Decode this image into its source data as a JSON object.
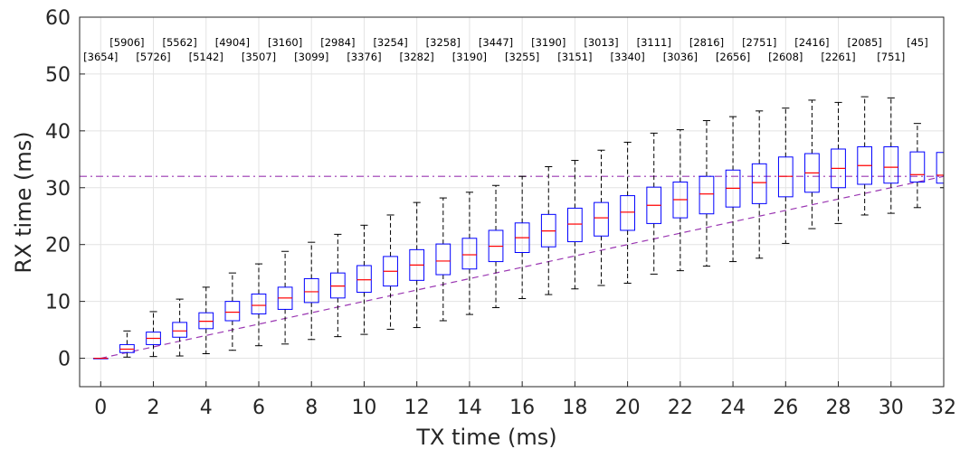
{
  "chart_data": {
    "type": "box",
    "title": "",
    "xlabel": "TX time (ms)",
    "ylabel": "RX time (ms)",
    "xlim": [
      -0.8,
      32
    ],
    "ylim": [
      -5,
      60
    ],
    "xticks": [
      0,
      2,
      4,
      6,
      8,
      10,
      12,
      14,
      16,
      18,
      20,
      22,
      24,
      26,
      28,
      30,
      32
    ],
    "yticks": [
      0,
      10,
      20,
      30,
      40,
      50,
      60
    ],
    "grid": true,
    "colors": {
      "box": "#0000ff",
      "median": "#ff0000",
      "whisker": "#000000",
      "reference": "#9a36b2"
    },
    "reference_lines": [
      {
        "kind": "horizontal",
        "y": 32,
        "style": "dash-dot"
      },
      {
        "kind": "diagonal",
        "from": [
          0,
          0
        ],
        "to": [
          32,
          32
        ],
        "style": "dashed"
      }
    ],
    "boxes": [
      {
        "x": 0,
        "whisker_low": 0,
        "q1": 0,
        "median": 0,
        "q3": 0,
        "whisker_high": 0
      },
      {
        "x": 1,
        "whisker_low": 0.2,
        "q1": 1.0,
        "median": 1.6,
        "q3": 2.4,
        "whisker_high": 4.8
      },
      {
        "x": 2,
        "whisker_low": 0.3,
        "q1": 2.4,
        "median": 3.5,
        "q3": 4.6,
        "whisker_high": 8.2
      },
      {
        "x": 3,
        "whisker_low": 0.4,
        "q1": 3.7,
        "median": 4.8,
        "q3": 6.3,
        "whisker_high": 10.4
      },
      {
        "x": 4,
        "whisker_low": 0.8,
        "q1": 5.2,
        "median": 6.5,
        "q3": 8.0,
        "whisker_high": 12.5
      },
      {
        "x": 5,
        "whisker_low": 1.4,
        "q1": 6.6,
        "median": 8.1,
        "q3": 10.0,
        "whisker_high": 15.0
      },
      {
        "x": 6,
        "whisker_low": 2.2,
        "q1": 7.8,
        "median": 9.3,
        "q3": 11.3,
        "whisker_high": 16.6
      },
      {
        "x": 7,
        "whisker_low": 2.5,
        "q1": 8.6,
        "median": 10.6,
        "q3": 12.5,
        "whisker_high": 18.8
      },
      {
        "x": 8,
        "whisker_low": 3.3,
        "q1": 9.8,
        "median": 11.7,
        "q3": 14.0,
        "whisker_high": 20.4
      },
      {
        "x": 9,
        "whisker_low": 3.8,
        "q1": 10.6,
        "median": 12.7,
        "q3": 15.0,
        "whisker_high": 21.8
      },
      {
        "x": 10,
        "whisker_low": 4.2,
        "q1": 11.6,
        "median": 13.8,
        "q3": 16.3,
        "whisker_high": 23.4
      },
      {
        "x": 11,
        "whisker_low": 5.1,
        "q1": 12.7,
        "median": 15.3,
        "q3": 17.9,
        "whisker_high": 25.2
      },
      {
        "x": 12,
        "whisker_low": 5.4,
        "q1": 13.7,
        "median": 16.4,
        "q3": 19.1,
        "whisker_high": 27.4
      },
      {
        "x": 13,
        "whisker_low": 6.6,
        "q1": 14.7,
        "median": 17.1,
        "q3": 20.1,
        "whisker_high": 28.2
      },
      {
        "x": 14,
        "whisker_low": 7.7,
        "q1": 15.7,
        "median": 18.2,
        "q3": 21.1,
        "whisker_high": 29.2
      },
      {
        "x": 15,
        "whisker_low": 8.9,
        "q1": 17.0,
        "median": 19.7,
        "q3": 22.5,
        "whisker_high": 30.4
      },
      {
        "x": 16,
        "whisker_low": 10.5,
        "q1": 18.6,
        "median": 21.2,
        "q3": 23.8,
        "whisker_high": 32.0
      },
      {
        "x": 17,
        "whisker_low": 11.2,
        "q1": 19.6,
        "median": 22.4,
        "q3": 25.3,
        "whisker_high": 33.7
      },
      {
        "x": 18,
        "whisker_low": 12.2,
        "q1": 20.5,
        "median": 23.6,
        "q3": 26.4,
        "whisker_high": 34.8
      },
      {
        "x": 19,
        "whisker_low": 12.8,
        "q1": 21.5,
        "median": 24.7,
        "q3": 27.4,
        "whisker_high": 36.6
      },
      {
        "x": 20,
        "whisker_low": 13.2,
        "q1": 22.5,
        "median": 25.7,
        "q3": 28.6,
        "whisker_high": 38.0
      },
      {
        "x": 21,
        "whisker_low": 14.8,
        "q1": 23.7,
        "median": 26.9,
        "q3": 30.1,
        "whisker_high": 39.6
      },
      {
        "x": 22,
        "whisker_low": 15.4,
        "q1": 24.7,
        "median": 27.9,
        "q3": 31.0,
        "whisker_high": 40.2
      },
      {
        "x": 23,
        "whisker_low": 16.2,
        "q1": 25.4,
        "median": 28.9,
        "q3": 32.0,
        "whisker_high": 41.8
      },
      {
        "x": 24,
        "whisker_low": 17.0,
        "q1": 26.6,
        "median": 29.9,
        "q3": 33.1,
        "whisker_high": 42.5
      },
      {
        "x": 25,
        "whisker_low": 17.6,
        "q1": 27.2,
        "median": 30.9,
        "q3": 34.2,
        "whisker_high": 43.5
      },
      {
        "x": 26,
        "whisker_low": 20.2,
        "q1": 28.4,
        "median": 32.0,
        "q3": 35.4,
        "whisker_high": 44.0
      },
      {
        "x": 27,
        "whisker_low": 22.8,
        "q1": 29.2,
        "median": 32.6,
        "q3": 36.0,
        "whisker_high": 45.4
      },
      {
        "x": 28,
        "whisker_low": 23.7,
        "q1": 30.0,
        "median": 33.4,
        "q3": 36.8,
        "whisker_high": 45.0
      },
      {
        "x": 29,
        "whisker_low": 25.2,
        "q1": 30.6,
        "median": 33.9,
        "q3": 37.2,
        "whisker_high": 46.0
      },
      {
        "x": 30,
        "whisker_low": 25.5,
        "q1": 30.8,
        "median": 33.6,
        "q3": 37.2,
        "whisker_high": 45.8
      },
      {
        "x": 31,
        "whisker_low": 26.5,
        "q1": 31.0,
        "median": 32.3,
        "q3": 36.3,
        "whisker_high": 41.3
      },
      {
        "x": 32,
        "whisker_low": 30.0,
        "q1": 30.8,
        "median": 32.2,
        "q3": 36.2,
        "whisker_high": 36.2
      }
    ],
    "annotations_upper": [
      {
        "x": 1,
        "text": "[5906]"
      },
      {
        "x": 3,
        "text": "[5562]"
      },
      {
        "x": 5,
        "text": "[4904]"
      },
      {
        "x": 7,
        "text": "[3160]"
      },
      {
        "x": 9,
        "text": "[2984]"
      },
      {
        "x": 11,
        "text": "[3254]"
      },
      {
        "x": 13,
        "text": "[3258]"
      },
      {
        "x": 15,
        "text": "[3447]"
      },
      {
        "x": 17,
        "text": "[3190]"
      },
      {
        "x": 19,
        "text": "[3013]"
      },
      {
        "x": 21,
        "text": "[3111]"
      },
      {
        "x": 23,
        "text": "[2816]"
      },
      {
        "x": 25,
        "text": "[2751]"
      },
      {
        "x": 27,
        "text": "[2416]"
      },
      {
        "x": 29,
        "text": "[2085]"
      },
      {
        "x": 31,
        "text": "[45]"
      }
    ],
    "annotations_lower": [
      {
        "x": 0,
        "text": "[3654]"
      },
      {
        "x": 2,
        "text": "[5726]"
      },
      {
        "x": 4,
        "text": "[5142]"
      },
      {
        "x": 6,
        "text": "[3507]"
      },
      {
        "x": 8,
        "text": "[3099]"
      },
      {
        "x": 10,
        "text": "[3376]"
      },
      {
        "x": 12,
        "text": "[3282]"
      },
      {
        "x": 14,
        "text": "[3190]"
      },
      {
        "x": 16,
        "text": "[3255]"
      },
      {
        "x": 18,
        "text": "[3151]"
      },
      {
        "x": 20,
        "text": "[3340]"
      },
      {
        "x": 22,
        "text": "[3036]"
      },
      {
        "x": 24,
        "text": "[2656]"
      },
      {
        "x": 26,
        "text": "[2608]"
      },
      {
        "x": 28,
        "text": "[2261]"
      },
      {
        "x": 30,
        "text": "[751]"
      }
    ],
    "annotation_rows_y": {
      "upper": 54.9,
      "lower": 52.4
    }
  }
}
